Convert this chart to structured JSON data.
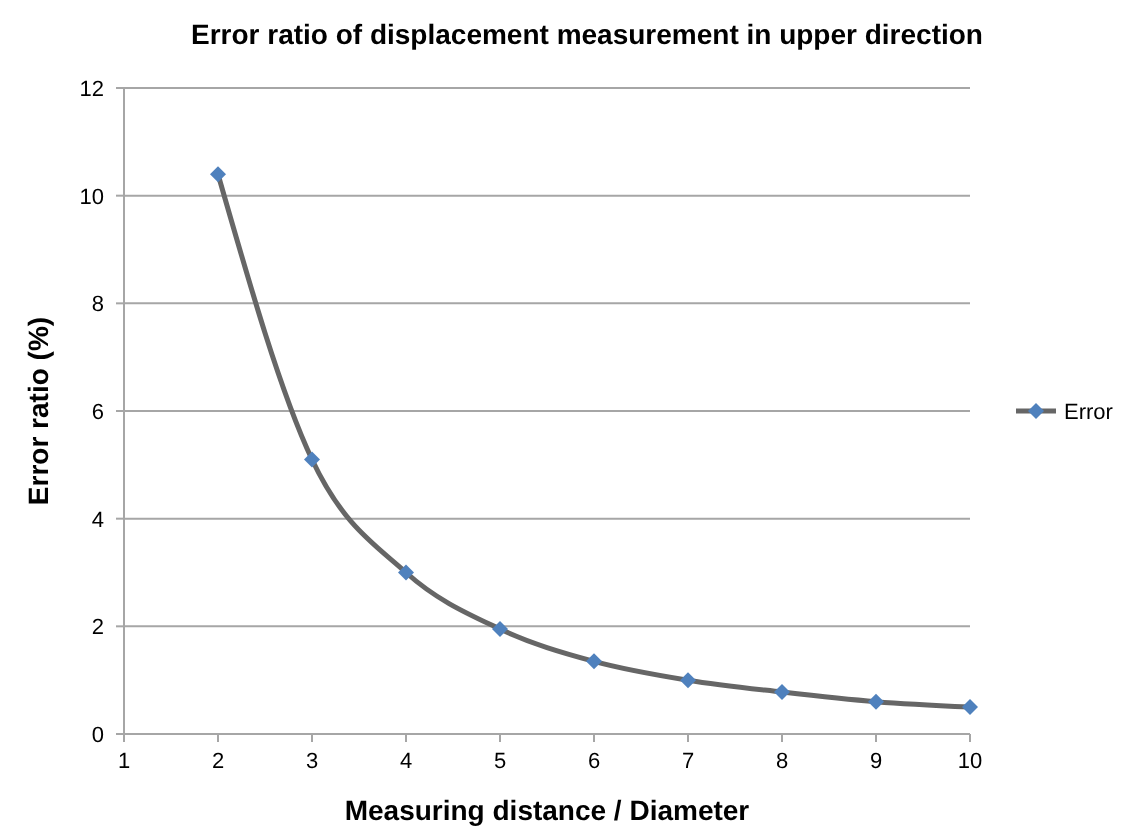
{
  "chart_data": {
    "type": "line",
    "title": "Error ratio of displacement measurement in upper direction",
    "xlabel": "Measuring distance / Diameter",
    "ylabel": "Error ratio (%)",
    "x": [
      2,
      3,
      4,
      5,
      6,
      7,
      8,
      9,
      10
    ],
    "series": [
      {
        "name": "Error",
        "color": "#4f81bd",
        "values": [
          10.4,
          5.1,
          3.0,
          1.95,
          1.35,
          1.0,
          0.78,
          0.6,
          0.5
        ]
      }
    ],
    "xlim": [
      1,
      10
    ],
    "xticks": [
      1,
      2,
      3,
      4,
      5,
      6,
      7,
      8,
      9,
      10
    ],
    "ylim": [
      0,
      12
    ],
    "yticks": [
      0,
      2,
      4,
      6,
      8,
      10,
      12
    ],
    "grid": "y",
    "legend": "right",
    "marker": "diamond",
    "line_style": "solid"
  }
}
